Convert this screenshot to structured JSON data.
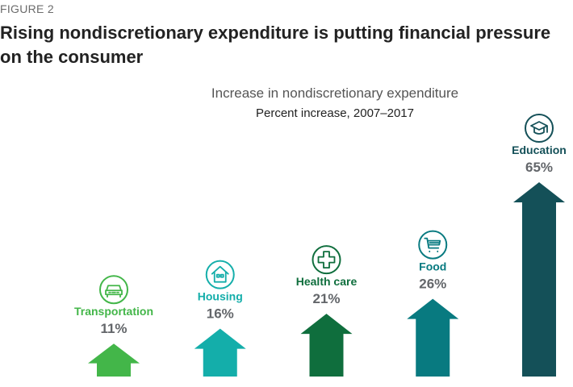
{
  "figure_label": "FIGURE 2",
  "headline": "Rising nondiscretionary expenditure is putting financial pressure on the consumer",
  "chart_data": {
    "type": "bar",
    "title": "Increase in nondiscretionary expenditure",
    "subtitle": "Percent increase, 2007–2017",
    "categories": [
      "Transportation",
      "Housing",
      "Health care",
      "Food",
      "Education"
    ],
    "values": [
      11,
      16,
      21,
      26,
      65
    ],
    "value_labels": [
      "11%",
      "16%",
      "21%",
      "26%",
      "65%"
    ],
    "icons": [
      "car-icon",
      "house-icon",
      "medical-cross-icon",
      "shopping-cart-icon",
      "graduation-cap-icon"
    ],
    "colors": [
      "#43b649",
      "#14aeaa",
      "#0f6e3d",
      "#087a80",
      "#145058"
    ],
    "mark": "up-arrow",
    "grid": false,
    "ylim": [
      0,
      65
    ]
  }
}
